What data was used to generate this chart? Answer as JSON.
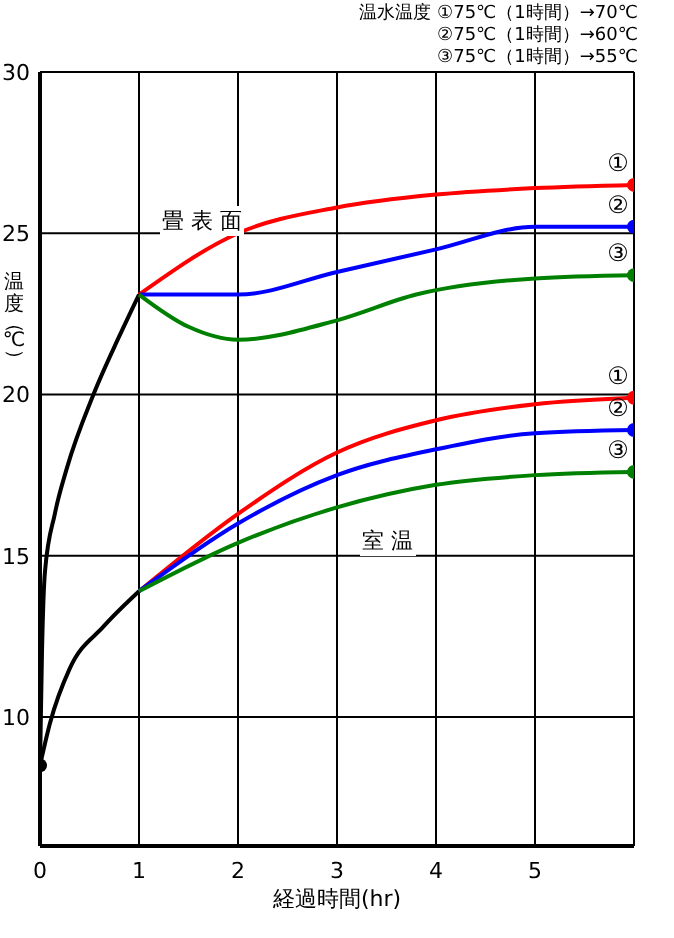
{
  "chart_data": {
    "type": "line",
    "xlabel": "経過時間(hr)",
    "ylabel": "温度（℃）",
    "annotations": [
      "温水温度 ①75℃（1時間）→70℃",
      "②75℃（1時間）→60℃",
      "③75℃（1時間）→55℃",
      "畳 表 面",
      "室 温"
    ],
    "xlim": [
      0,
      6
    ],
    "xticks": [
      0,
      1,
      2,
      3,
      4,
      5
    ],
    "ylim": [
      6,
      30
    ],
    "yticks": [
      10,
      15,
      20,
      25,
      30
    ],
    "grid": true,
    "legend": false,
    "line_style": "solid",
    "series": [
      {
        "color": "#000000",
        "x": [
          0,
          0.02,
          0.05,
          0.15,
          0.27,
          0.54,
          0.8,
          1
        ],
        "values": [
          8.5,
          12,
          14.5,
          16.3,
          17.7,
          20,
          21.8,
          23.1
        ]
      },
      {
        "color": "#000000",
        "x": [
          0,
          0.1,
          0.3,
          0.64,
          1
        ],
        "values": [
          8.5,
          9.8,
          11.5,
          12.8,
          13.9
        ]
      },
      {
        "name": "①",
        "color": "#ff0000",
        "x": [
          1,
          2,
          3,
          4,
          5,
          6
        ],
        "values": [
          23.1,
          25,
          25.8,
          26.2,
          26.4,
          26.5
        ]
      },
      {
        "name": "②",
        "color": "#0000ff",
        "x": [
          1,
          2,
          3,
          4,
          5,
          6
        ],
        "values": [
          23.1,
          23.1,
          23.8,
          24.5,
          25.2,
          25.2
        ]
      },
      {
        "name": "③",
        "color": "#008000",
        "x": [
          1,
          1.5,
          2,
          3,
          3.8,
          5,
          6
        ],
        "values": [
          23.1,
          22.1,
          21.7,
          22.3,
          23.1,
          23.6,
          23.7
        ]
      },
      {
        "name": "①",
        "color": "#ff0000",
        "x": [
          1,
          2,
          3,
          4,
          5,
          6
        ],
        "values": [
          13.9,
          16.3,
          18.2,
          19.2,
          19.7,
          19.9
        ]
      },
      {
        "name": "②",
        "color": "#0000ff",
        "x": [
          1,
          2,
          3,
          4,
          5,
          6
        ],
        "values": [
          13.9,
          16,
          17.5,
          18.3,
          18.8,
          18.9
        ]
      },
      {
        "name": "③",
        "color": "#008000",
        "x": [
          1,
          2,
          3,
          4,
          5,
          6
        ],
        "values": [
          13.9,
          15.4,
          16.5,
          17.2,
          17.5,
          17.6
        ]
      },
      {
        "type": "scatter",
        "marker": "circle",
        "color": "#000000",
        "x": [
          0
        ],
        "values": [
          8.5
        ]
      },
      {
        "type": "scatter",
        "marker": "circle",
        "color": "#ff0000",
        "x": [
          6,
          6
        ],
        "values": [
          26.5,
          19.9
        ]
      },
      {
        "type": "scatter",
        "marker": "circle",
        "color": "#0000ff",
        "x": [
          6,
          6
        ],
        "values": [
          25.2,
          18.9
        ]
      },
      {
        "type": "scatter",
        "marker": "circle",
        "color": "#008000",
        "x": [
          6,
          6
        ],
        "values": [
          23.7,
          17.6
        ]
      }
    ]
  }
}
